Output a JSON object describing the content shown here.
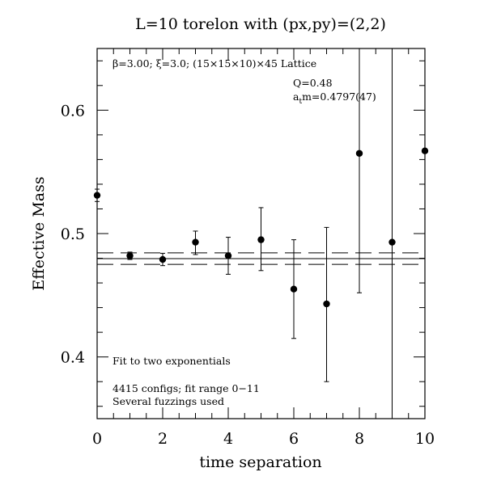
{
  "chart_data": {
    "type": "scatter",
    "title": "L=10 torelon with (px,py)=(2,2)",
    "xlabel": "time separation",
    "ylabel": "Effective Mass",
    "xlim": [
      0,
      10
    ],
    "ylim": [
      0.35,
      0.65
    ],
    "xticks": [
      0,
      2,
      4,
      6,
      8,
      10
    ],
    "xtick_labels": [
      "0",
      "2",
      "4",
      "6",
      "8",
      "10"
    ],
    "yticks": [
      0.4,
      0.5,
      0.6
    ],
    "ytick_labels": [
      "0.4",
      "0.5",
      "0.6"
    ],
    "series": [
      {
        "x": [
          0,
          1,
          2,
          3,
          4,
          5,
          6,
          7,
          8,
          9,
          10
        ],
        "y": [
          0.531,
          0.482,
          0.479,
          0.493,
          0.482,
          0.495,
          0.455,
          0.443,
          0.565,
          0.493,
          0.567
        ],
        "yerr_low": [
          0.005,
          0.003,
          0.005,
          0.01,
          0.015,
          0.025,
          0.04,
          0.063,
          0.113,
          0.15,
          0.22
        ],
        "yerr_high": [
          0.005,
          0.003,
          0.005,
          0.009,
          0.015,
          0.026,
          0.04,
          0.062,
          0.12,
          0.2,
          0.22
        ]
      }
    ],
    "fit": {
      "value": 0.4797,
      "error": 0.0047
    },
    "grid": false,
    "annotations": {
      "lattice": "β=3.00; ξ=3.0; (15×15×10)×45 Lattice",
      "q": "Q=0.48",
      "atm_prefix": "a",
      "atm_sub": "t",
      "atm_rest": "m=0.4797(47)",
      "fit_note": "Fit to two exponentials",
      "configs": "4415 configs; fit range 0−11",
      "fuzzings": "Several fuzzings used"
    }
  }
}
